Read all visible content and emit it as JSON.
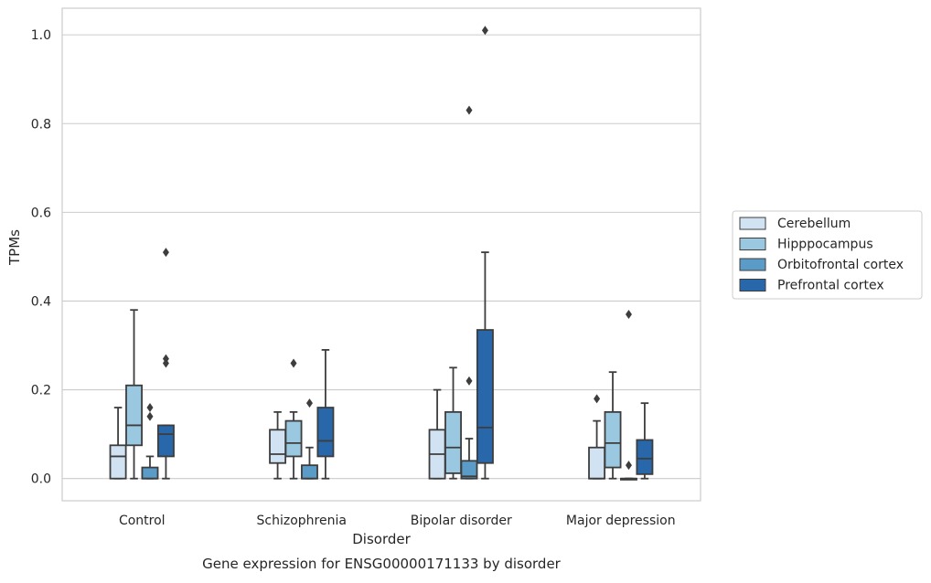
{
  "chart_data": {
    "type": "boxplot",
    "title": "Gene expression for ENSG00000171133 by disorder",
    "xlabel": "Disorder",
    "ylabel": "TPMs",
    "ylim": [
      -0.05,
      1.06
    ],
    "yticks": [
      "0.0",
      "0.2",
      "0.4",
      "0.6",
      "0.8",
      "1.0"
    ],
    "categories": [
      "Control",
      "Schizophrenia",
      "Bipolar disorder",
      "Major depression"
    ],
    "grid": "horizontal",
    "legend_position": "right",
    "series": [
      {
        "name": "Cerebellum",
        "color": "#d1e2f2",
        "boxes": [
          {
            "whislo": 0.0,
            "q1": 0.0,
            "med": 0.05,
            "q3": 0.075,
            "whishi": 0.16,
            "fliers": []
          },
          {
            "whislo": 0.0,
            "q1": 0.035,
            "med": 0.055,
            "q3": 0.11,
            "whishi": 0.15,
            "fliers": []
          },
          {
            "whislo": 0.0,
            "q1": 0.0,
            "med": 0.055,
            "q3": 0.11,
            "whishi": 0.2,
            "fliers": []
          },
          {
            "whislo": 0.0,
            "q1": 0.0,
            "med": 0.0,
            "q3": 0.07,
            "whishi": 0.13,
            "fliers": [
              0.18
            ]
          }
        ]
      },
      {
        "name": "Hipppocampus",
        "color": "#9ac8e0",
        "boxes": [
          {
            "whislo": 0.0,
            "q1": 0.075,
            "med": 0.12,
            "q3": 0.21,
            "whishi": 0.38,
            "fliers": []
          },
          {
            "whislo": 0.0,
            "q1": 0.05,
            "med": 0.08,
            "q3": 0.13,
            "whishi": 0.15,
            "fliers": [
              0.26
            ]
          },
          {
            "whislo": 0.0,
            "q1": 0.012,
            "med": 0.07,
            "q3": 0.15,
            "whishi": 0.25,
            "fliers": []
          },
          {
            "whislo": 0.0,
            "q1": 0.025,
            "med": 0.08,
            "q3": 0.15,
            "whishi": 0.24,
            "fliers": []
          }
        ]
      },
      {
        "name": "Orbitofrontal cortex",
        "color": "#5a9bc7",
        "boxes": [
          {
            "whislo": 0.0,
            "q1": 0.0,
            "med": 0.0,
            "q3": 0.025,
            "whishi": 0.05,
            "fliers": [
              0.14,
              0.16
            ]
          },
          {
            "whislo": 0.0,
            "q1": 0.0,
            "med": 0.0,
            "q3": 0.03,
            "whishi": 0.07,
            "fliers": [
              0.17
            ]
          },
          {
            "whislo": 0.0,
            "q1": 0.0,
            "med": 0.005,
            "q3": 0.04,
            "whishi": 0.09,
            "fliers": [
              0.22,
              0.83
            ]
          },
          {
            "whislo": 0.0,
            "q1": 0.0,
            "med": 0.0,
            "q3": 0.0,
            "whishi": 0.0,
            "fliers": [
              0.03,
              0.37
            ]
          }
        ]
      },
      {
        "name": "Prefrontal cortex",
        "color": "#2767aa",
        "boxes": [
          {
            "whislo": 0.0,
            "q1": 0.05,
            "med": 0.1,
            "q3": 0.12,
            "whishi": 0.12,
            "fliers": [
              0.26,
              0.27,
              0.51
            ]
          },
          {
            "whislo": 0.0,
            "q1": 0.05,
            "med": 0.085,
            "q3": 0.16,
            "whishi": 0.29,
            "fliers": []
          },
          {
            "whislo": 0.0,
            "q1": 0.035,
            "med": 0.115,
            "q3": 0.335,
            "whishi": 0.51,
            "fliers": [
              1.01
            ]
          },
          {
            "whislo": 0.0,
            "q1": 0.01,
            "med": 0.045,
            "q3": 0.087,
            "whishi": 0.17,
            "fliers": []
          }
        ]
      }
    ]
  }
}
